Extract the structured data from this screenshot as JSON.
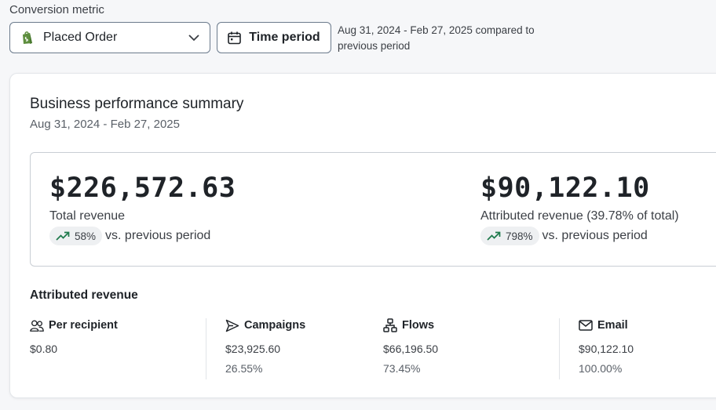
{
  "filters": {
    "metric_label": "Conversion metric",
    "metric_value": "Placed Order",
    "time_button": "Time period",
    "range_note": "Aug 31, 2024 - Feb 27, 2025 compared to previous period"
  },
  "summary": {
    "title": "Business performance summary",
    "subtitle": "Aug 31, 2024 - Feb 27, 2025",
    "total": {
      "amount": "$226,572.63",
      "label": "Total revenue",
      "change": "58%",
      "vs": "vs. previous period"
    },
    "attributed": {
      "amount": "$90,122.10",
      "label": "Attributed revenue (39.78% of total)",
      "change": "798%",
      "vs": "vs. previous period"
    }
  },
  "attributed_section": {
    "title": "Attributed revenue",
    "stats": [
      {
        "label": "Per recipient",
        "value": "$0.80",
        "share": "",
        "icon": "users-icon"
      },
      {
        "label": "Campaigns",
        "value": "$23,925.60",
        "share": "26.55%",
        "icon": "send-icon"
      },
      {
        "label": "Flows",
        "value": "$66,196.50",
        "share": "73.45%",
        "icon": "flow-icon"
      },
      {
        "label": "Email",
        "value": "$90,122.10",
        "share": "100.00%",
        "icon": "mail-icon"
      }
    ]
  },
  "colors": {
    "trend_up": "#1e7a4c",
    "shopify_green": "#5e8e3e"
  }
}
